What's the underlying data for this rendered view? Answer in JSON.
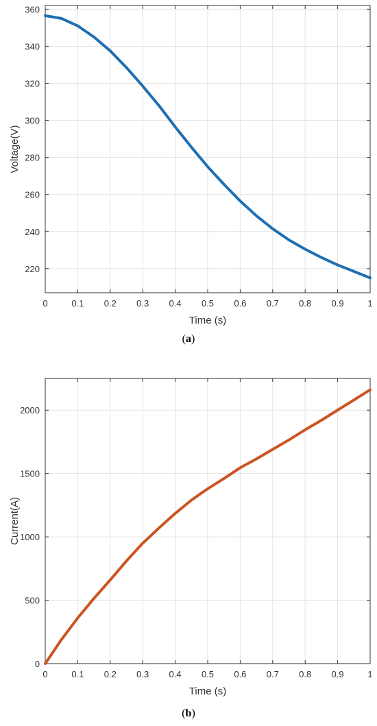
{
  "chart_data": [
    {
      "type": "line",
      "caption_letter": "a",
      "xlabel": "Time (s)",
      "ylabel": "Voltage(V)",
      "xlim": [
        0,
        1
      ],
      "ylim": [
        207,
        362
      ],
      "xticks": [
        0,
        0.1,
        0.2,
        0.3,
        0.4,
        0.5,
        0.6,
        0.7,
        0.8,
        0.9,
        1
      ],
      "xtick_labels": [
        "0",
        "0.1",
        "0.2",
        "0.3",
        "0.4",
        "0.5",
        "0.6",
        "0.7",
        "0.8",
        "0.9",
        "1"
      ],
      "yticks": [
        220,
        240,
        260,
        280,
        300,
        320,
        340,
        360
      ],
      "ytick_labels": [
        "220",
        "240",
        "260",
        "280",
        "300",
        "320",
        "340",
        "360"
      ],
      "grid": true,
      "series": [
        {
          "color": "#1f6fb2",
          "x": [
            0,
            0.05,
            0.1,
            0.15,
            0.2,
            0.25,
            0.3,
            0.35,
            0.4,
            0.45,
            0.5,
            0.55,
            0.6,
            0.65,
            0.7,
            0.75,
            0.8,
            0.85,
            0.9,
            0.95,
            1.0
          ],
          "y": [
            356.5,
            355,
            351,
            345,
            337.5,
            328.5,
            318.5,
            308,
            296.5,
            285.5,
            275,
            265.5,
            256.5,
            248.5,
            241.5,
            235.5,
            230.5,
            226,
            222,
            218.5,
            215
          ]
        }
      ]
    },
    {
      "type": "line",
      "caption_letter": "b",
      "xlabel": "Time (s)",
      "ylabel": "Current(A)",
      "xlim": [
        0,
        1
      ],
      "ylim": [
        0,
        2250
      ],
      "xticks": [
        0,
        0.1,
        0.2,
        0.3,
        0.4,
        0.5,
        0.6,
        0.7,
        0.8,
        0.9,
        1
      ],
      "xtick_labels": [
        "0",
        "0.1",
        "0.2",
        "0.3",
        "0.4",
        "0.5",
        "0.6",
        "0.7",
        "0.8",
        "0.9",
        "1"
      ],
      "yticks": [
        0,
        500,
        1000,
        1500,
        2000
      ],
      "ytick_labels": [
        "0",
        "500",
        "1000",
        "1500",
        "2000"
      ],
      "grid": true,
      "series": [
        {
          "color": "#cc5422",
          "x": [
            0,
            0.05,
            0.1,
            0.15,
            0.2,
            0.25,
            0.3,
            0.35,
            0.4,
            0.45,
            0.5,
            0.55,
            0.6,
            0.65,
            0.7,
            0.75,
            0.8,
            0.85,
            0.9,
            0.95,
            1.0
          ],
          "y": [
            0,
            190,
            360,
            515,
            660,
            810,
            950,
            1070,
            1185,
            1290,
            1380,
            1460,
            1545,
            1615,
            1690,
            1765,
            1845,
            1920,
            2000,
            2080,
            2160
          ]
        }
      ]
    }
  ]
}
